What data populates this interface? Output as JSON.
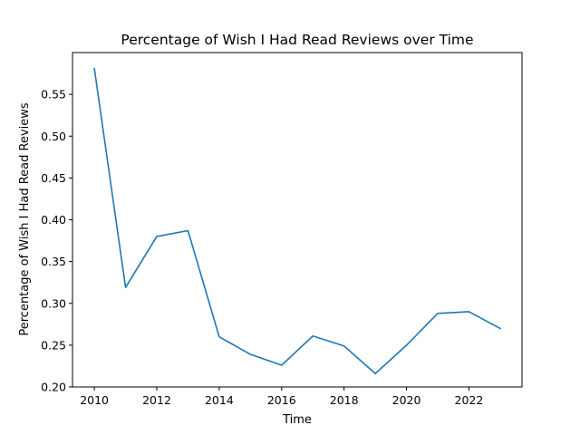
{
  "chart_data": {
    "type": "line",
    "title": "Percentage of Wish I Had Read Reviews over Time",
    "xlabel": "Time",
    "ylabel": "Percentage of Wish I Had Read Reviews",
    "xlim": [
      2009.3,
      2023.7
    ],
    "ylim": [
      0.2,
      0.6
    ],
    "x_ticks": [
      2010,
      2012,
      2014,
      2016,
      2018,
      2020,
      2022
    ],
    "y_ticks": [
      0.2,
      0.25,
      0.3,
      0.35,
      0.4,
      0.45,
      0.5,
      0.55
    ],
    "grid": false,
    "series": [
      {
        "color": "#1f77b4",
        "x": [
          2010,
          2011,
          2012,
          2013,
          2014,
          2015,
          2016,
          2017,
          2018,
          2019,
          2020,
          2021,
          2022,
          2023
        ],
        "y": [
          0.581,
          0.319,
          0.38,
          0.387,
          0.26,
          0.239,
          0.226,
          0.261,
          0.249,
          0.216,
          0.25,
          0.288,
          0.29,
          0.27
        ]
      }
    ]
  }
}
